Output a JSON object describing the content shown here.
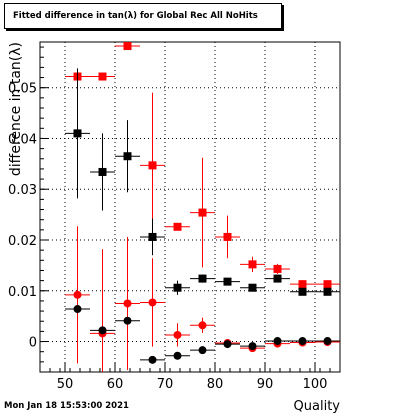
{
  "chart_data": {
    "type": "scatter",
    "title": "Fitted difference in tan(λ) for Global Rec All NoHits",
    "xlabel": "Quality",
    "ylabel": "difference in tan(λ)",
    "xlim": [
      45,
      105
    ],
    "ylim": [
      -0.006,
      0.059
    ],
    "x_ticks": [
      50,
      60,
      70,
      80,
      90,
      100
    ],
    "y_ticks": [
      0,
      0.01,
      0.02,
      0.03,
      0.04,
      0.05
    ],
    "y_tick_labels": [
      "0",
      "0.01",
      "0.02",
      "0.03",
      "0.04",
      "0.05"
    ],
    "grid": true,
    "x_bin_half_width": 2.5,
    "series": [
      {
        "marker": "square",
        "color": "#ff0000",
        "points": [
          {
            "x": 52.5,
            "y": 0.0522,
            "err": 0
          },
          {
            "x": 57.5,
            "y": 0.0522,
            "err": 0
          },
          {
            "x": 62.5,
            "y": 0.0582,
            "err": 0
          },
          {
            "x": 67.5,
            "y": 0.0347,
            "err": 0.0143
          },
          {
            "x": 72.5,
            "y": 0.0226,
            "err": 0
          },
          {
            "x": 77.5,
            "y": 0.0254,
            "err": 0.0108
          },
          {
            "x": 82.5,
            "y": 0.0206,
            "err": 0.0042
          },
          {
            "x": 87.5,
            "y": 0.0152,
            "err": 0.0015
          },
          {
            "x": 92.5,
            "y": 0.0143,
            "err": 0.001
          },
          {
            "x": 97.5,
            "y": 0.0113,
            "err": 0.0008
          },
          {
            "x": 102.5,
            "y": 0.0113,
            "err": 0.0007
          }
        ]
      },
      {
        "marker": "square",
        "color": "#000000",
        "points": [
          {
            "x": 52.5,
            "y": 0.041,
            "err": 0.0128
          },
          {
            "x": 57.5,
            "y": 0.0334,
            "err": 0.0076
          },
          {
            "x": 62.5,
            "y": 0.0365,
            "err": 0.0071
          },
          {
            "x": 67.5,
            "y": 0.0206,
            "err": 0.0036
          },
          {
            "x": 72.5,
            "y": 0.0106,
            "err": 0.0014
          },
          {
            "x": 77.5,
            "y": 0.0124,
            "err": 0.0008
          },
          {
            "x": 82.5,
            "y": 0.0118,
            "err": 0.0005
          },
          {
            "x": 87.5,
            "y": 0.0106,
            "err": 0.0004
          },
          {
            "x": 92.5,
            "y": 0.0124,
            "err": 0.0003
          },
          {
            "x": 97.5,
            "y": 0.0098,
            "err": 0.0002
          },
          {
            "x": 102.5,
            "y": 0.0098,
            "err": 0.0002
          }
        ]
      },
      {
        "marker": "circle",
        "color": "#ff0000",
        "points": [
          {
            "x": 52.5,
            "y": 0.0092,
            "err": 0.0135
          },
          {
            "x": 57.5,
            "y": 0.0016,
            "err": 0.0166
          },
          {
            "x": 62.5,
            "y": 0.0075,
            "err": 0.0131
          },
          {
            "x": 67.5,
            "y": 0.0077,
            "err": 0.0087
          },
          {
            "x": 72.5,
            "y": 0.0013,
            "err": 0.0023
          },
          {
            "x": 77.5,
            "y": 0.0032,
            "err": 0.0015
          },
          {
            "x": 82.5,
            "y": -0.0003,
            "err": 0.0007
          },
          {
            "x": 87.5,
            "y": -0.0013,
            "err": 0.0005
          },
          {
            "x": 92.5,
            "y": -0.0004,
            "err": 0.0003
          },
          {
            "x": 97.5,
            "y": -0.0002,
            "err": 0.0002
          },
          {
            "x": 102.5,
            "y": -0.0001,
            "err": 0.0002
          }
        ]
      },
      {
        "marker": "circle",
        "color": "#000000",
        "points": [
          {
            "x": 52.5,
            "y": 0.0064,
            "err": 0
          },
          {
            "x": 57.5,
            "y": 0.0022,
            "err": 0
          },
          {
            "x": 62.5,
            "y": 0.0041,
            "err": 0
          },
          {
            "x": 67.5,
            "y": -0.0036,
            "err": 0
          },
          {
            "x": 72.5,
            "y": -0.0028,
            "err": 0
          },
          {
            "x": 77.5,
            "y": -0.0017,
            "err": 0
          },
          {
            "x": 82.5,
            "y": -0.0005,
            "err": 0
          },
          {
            "x": 87.5,
            "y": -0.0009,
            "err": 0
          },
          {
            "x": 92.5,
            "y": 0.0001,
            "err": 0
          },
          {
            "x": 97.5,
            "y": 0.0001,
            "err": 0
          },
          {
            "x": 102.5,
            "y": 0.0001,
            "err": 0
          }
        ]
      }
    ]
  },
  "footer": {
    "timestamp": "Mon Jan 18 15:53:00 2021"
  }
}
